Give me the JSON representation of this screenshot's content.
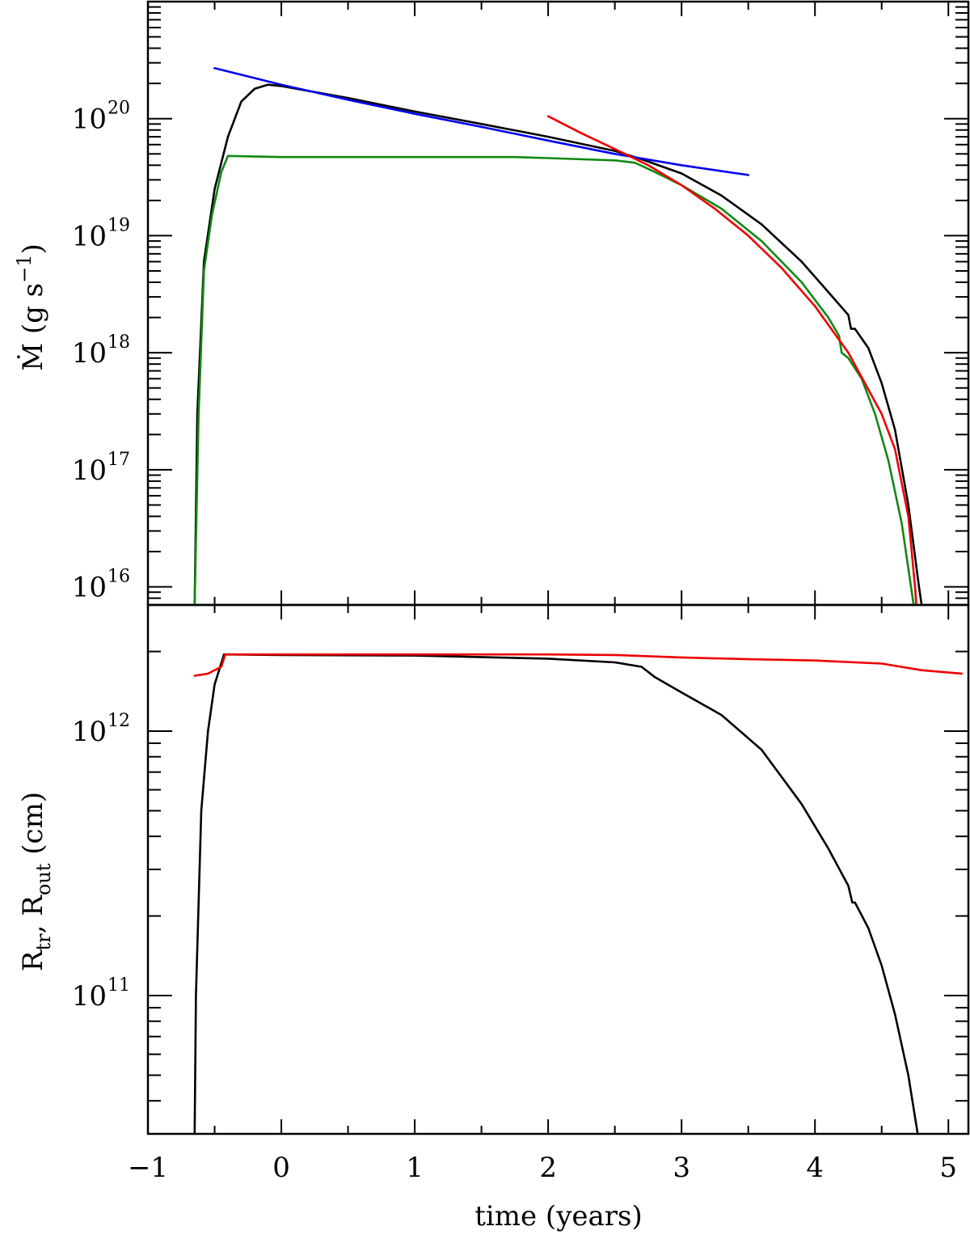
{
  "chart_data": [
    {
      "panel": "top",
      "type": "line",
      "y_scale": "log",
      "xlim": [
        -1,
        5.15
      ],
      "ylim": [
        7000000000000000.0,
        1e+21
      ],
      "x_ticklabels": [
        "−1",
        "0",
        "1",
        "2",
        "3",
        "4",
        "5"
      ],
      "y_ticklabels": [
        {
          "value": 1e+16,
          "mantissa": "10",
          "exponent": "16"
        },
        {
          "value": 1e+17,
          "mantissa": "10",
          "exponent": "17"
        },
        {
          "value": 1e+18,
          "mantissa": "10",
          "exponent": "18"
        },
        {
          "value": 1e+19,
          "mantissa": "10",
          "exponent": "19"
        },
        {
          "value": 1e+20,
          "mantissa": "10",
          "exponent": "20"
        }
      ],
      "ylabel": {
        "main": "Ṁ (g s",
        "sup": "−1",
        "close": ")"
      },
      "series": [
        {
          "color": "#000000",
          "points": [
            [
              -0.65,
              7000000000000000.0
            ],
            [
              -0.63,
              3e+17
            ],
            [
              -0.58,
              6e+18
            ],
            [
              -0.5,
              2.5e+19
            ],
            [
              -0.4,
              7e+19
            ],
            [
              -0.3,
              1.4e+20
            ],
            [
              -0.2,
              1.8e+20
            ],
            [
              -0.1,
              1.95e+20
            ],
            [
              0.0,
              1.9e+20
            ],
            [
              0.5,
              1.5e+20
            ],
            [
              1.0,
              1.15e+20
            ],
            [
              1.5,
              9e+19
            ],
            [
              2.0,
              7e+19
            ],
            [
              2.5,
              5.3e+19
            ],
            [
              2.7,
              4.5e+19
            ],
            [
              3.0,
              3.4e+19
            ],
            [
              3.3,
              2.2e+19
            ],
            [
              3.6,
              1.25e+19
            ],
            [
              3.9,
              6e+18
            ],
            [
              4.1,
              3.3e+18
            ],
            [
              4.25,
              2.1e+18
            ],
            [
              4.27,
              1.6e+18
            ],
            [
              4.3,
              1.6e+18
            ],
            [
              4.4,
              1.1e+18
            ],
            [
              4.5,
              5.5e+17
            ],
            [
              4.6,
              2.2e+17
            ],
            [
              4.7,
              5e+16
            ],
            [
              4.78,
              1e+16
            ],
            [
              4.8,
              7000000000000000.0
            ]
          ]
        },
        {
          "color": "#118811",
          "points": [
            [
              -0.65,
              7000000000000000.0
            ],
            [
              -0.62,
              3e+17
            ],
            [
              -0.58,
              5e+18
            ],
            [
              -0.52,
              1.5e+19
            ],
            [
              -0.45,
              3.5e+19
            ],
            [
              -0.4,
              4.8e+19
            ],
            [
              0.0,
              4.7e+19
            ],
            [
              1.0,
              4.7e+19
            ],
            [
              1.75,
              4.7e+19
            ],
            [
              2.0,
              4.6e+19
            ],
            [
              2.5,
              4.4e+19
            ],
            [
              2.65,
              4.2e+19
            ],
            [
              2.8,
              3.5e+19
            ],
            [
              3.0,
              2.7e+19
            ],
            [
              3.3,
              1.7e+19
            ],
            [
              3.6,
              9e+18
            ],
            [
              3.9,
              4e+18
            ],
            [
              4.1,
              2e+18
            ],
            [
              4.18,
              1.4e+18
            ],
            [
              4.2,
              1e+18
            ],
            [
              4.25,
              9e+17
            ],
            [
              4.35,
              6e+17
            ],
            [
              4.45,
              3e+17
            ],
            [
              4.55,
              1.2e+17
            ],
            [
              4.65,
              3.5e+16
            ],
            [
              4.74,
              7000000000000000.0
            ]
          ]
        },
        {
          "color": "#0000ee",
          "points": [
            [
              -0.5,
              2.7e+20
            ],
            [
              0.0,
              1.95e+20
            ],
            [
              0.5,
              1.45e+20
            ],
            [
              1.0,
              1.1e+20
            ],
            [
              1.5,
              8.5e+19
            ],
            [
              2.0,
              6.5e+19
            ],
            [
              2.5,
              5e+19
            ],
            [
              3.0,
              4e+19
            ],
            [
              3.5,
              3.3e+19
            ]
          ]
        },
        {
          "color": "#ee0000",
          "points": [
            [
              2.0,
              1.05e+20
            ],
            [
              2.25,
              7.5e+19
            ],
            [
              2.5,
              5.5e+19
            ],
            [
              2.75,
              4e+19
            ],
            [
              3.0,
              2.7e+19
            ],
            [
              3.25,
              1.7e+19
            ],
            [
              3.5,
              1e+19
            ],
            [
              3.75,
              5.3e+18
            ],
            [
              4.0,
              2.5e+18
            ],
            [
              4.25,
              1e+18
            ],
            [
              4.5,
              3e+17
            ],
            [
              4.6,
              1.5e+17
            ],
            [
              4.7,
              4e+16
            ],
            [
              4.75,
              1e+16
            ],
            [
              4.76,
              7000000000000000.0
            ]
          ]
        }
      ]
    },
    {
      "panel": "bottom",
      "type": "line",
      "y_scale": "log",
      "xlim": [
        -1,
        5.15
      ],
      "ylim": [
        30000000000.0,
        3000000000000.0
      ],
      "x_ticklabels": [
        "−1",
        "0",
        "1",
        "2",
        "3",
        "4",
        "5"
      ],
      "xlabel": "time (years)",
      "y_ticklabels": [
        {
          "value": 100000000000.0,
          "mantissa": "10",
          "exponent": "11"
        },
        {
          "value": 1000000000000.0,
          "mantissa": "10",
          "exponent": "12"
        }
      ],
      "ylabel": {
        "r1": "R",
        "r1sub": "tr",
        "sep": ", ",
        "r2": "R",
        "r2sub": "out",
        "unit": " (cm)"
      },
      "series": [
        {
          "color": "#000000",
          "points": [
            [
              -0.65,
              30000000000.0
            ],
            [
              -0.64,
              100000000000.0
            ],
            [
              -0.6,
              500000000000.0
            ],
            [
              -0.55,
              1000000000000.0
            ],
            [
              -0.5,
              1500000000000.0
            ],
            [
              -0.43,
              1950000000000.0
            ],
            [
              0.0,
              1940000000000.0
            ],
            [
              1.0,
              1930000000000.0
            ],
            [
              2.0,
              1880000000000.0
            ],
            [
              2.5,
              1820000000000.0
            ],
            [
              2.7,
              1750000000000.0
            ],
            [
              2.8,
              1600000000000.0
            ],
            [
              3.0,
              1400000000000.0
            ],
            [
              3.3,
              1150000000000.0
            ],
            [
              3.6,
              850000000000.0
            ],
            [
              3.9,
              530000000000.0
            ],
            [
              4.1,
              360000000000.0
            ],
            [
              4.25,
              260000000000.0
            ],
            [
              4.28,
              225000000000.0
            ],
            [
              4.3,
              225000000000.0
            ],
            [
              4.4,
              180000000000.0
            ],
            [
              4.5,
              130000000000.0
            ],
            [
              4.6,
              85000000000.0
            ],
            [
              4.7,
              50000000000.0
            ],
            [
              4.77,
              30000000000.0
            ]
          ]
        },
        {
          "color": "#ee0000",
          "points": [
            [
              -0.65,
              1620000000000.0
            ],
            [
              -0.55,
              1650000000000.0
            ],
            [
              -0.45,
              1750000000000.0
            ],
            [
              -0.42,
              1950000000000.0
            ],
            [
              0.0,
              1950000000000.0
            ],
            [
              1.0,
              1950000000000.0
            ],
            [
              2.0,
              1950000000000.0
            ],
            [
              2.5,
              1940000000000.0
            ],
            [
              3.0,
              1900000000000.0
            ],
            [
              3.5,
              1870000000000.0
            ],
            [
              4.0,
              1850000000000.0
            ],
            [
              4.5,
              1800000000000.0
            ],
            [
              4.8,
              1700000000000.0
            ],
            [
              5.1,
              1650000000000.0
            ]
          ]
        }
      ]
    }
  ]
}
